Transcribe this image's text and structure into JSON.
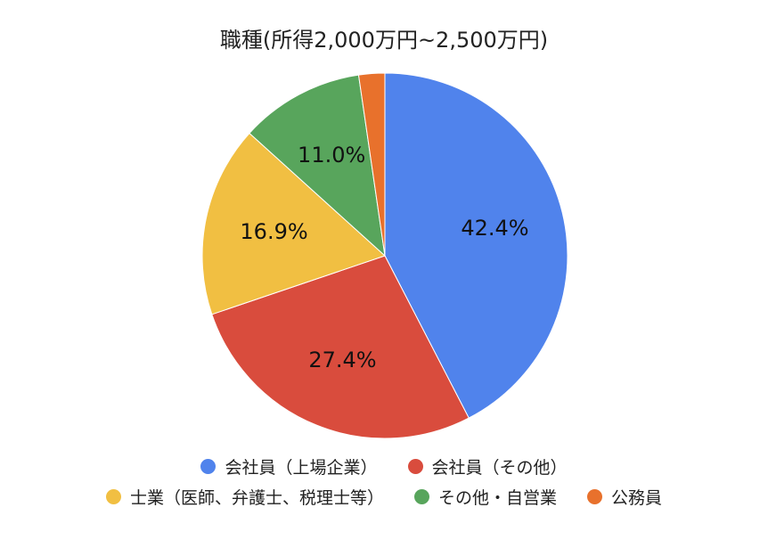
{
  "chart_data": {
    "type": "pie",
    "title": "職種(所得2,000万円~2,500万円)",
    "categories": [
      "会社員（上場企業）",
      "会社員（その他）",
      "士業（医師、弁護士、税理士等）",
      "その他・自営業",
      "公務員"
    ],
    "values": [
      42.4,
      27.4,
      16.9,
      11.0,
      2.3
    ],
    "value_labels": [
      "42.4%",
      "27.4%",
      "16.9%",
      "11.0%",
      null
    ],
    "colors": [
      "#5083ec",
      "#d94c3d",
      "#f1bf42",
      "#58a55c",
      "#e8712c"
    ],
    "legend": "bottom"
  }
}
